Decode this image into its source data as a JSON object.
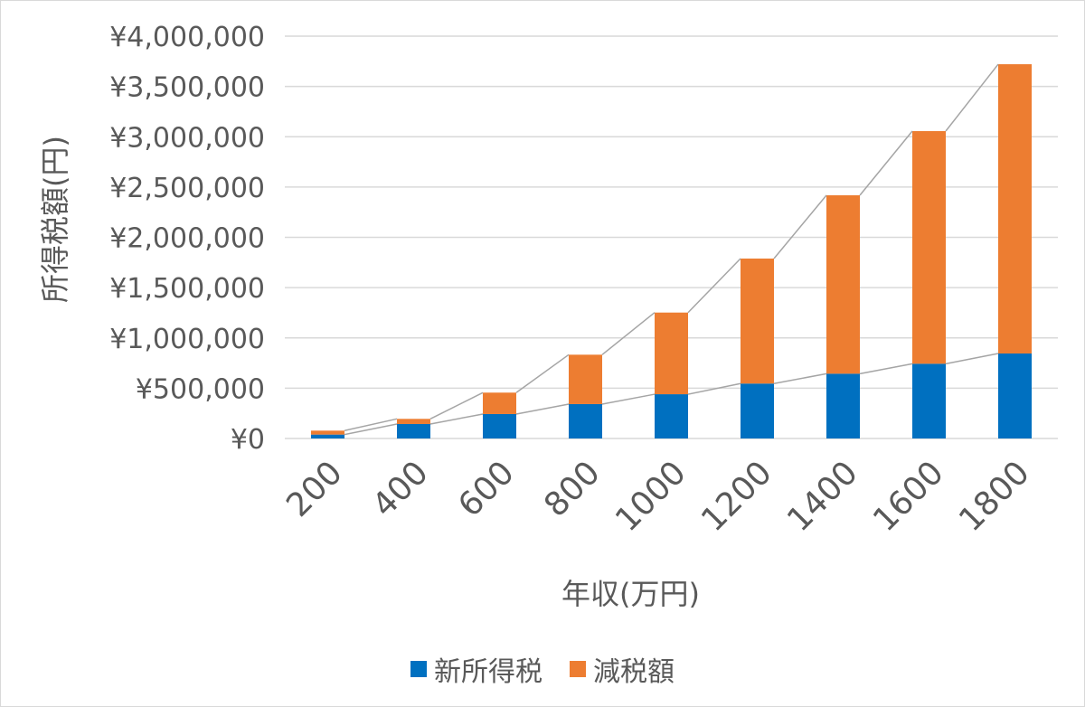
{
  "chart_data": {
    "type": "bar",
    "stacked": true,
    "xlabel": "年収(万円)",
    "ylabel": "所得税額(円)",
    "categories": [
      "200",
      "400",
      "600",
      "800",
      "1000",
      "1200",
      "1400",
      "1600",
      "1800"
    ],
    "series": [
      {
        "name": "新所得税",
        "color": "#0070c0",
        "values": [
          39000,
          144000,
          243000,
          342000,
          440000,
          546000,
          644000,
          743000,
          845000
        ]
      },
      {
        "name": "減税額",
        "color": "#ed7d31",
        "values": [
          39000,
          51000,
          213000,
          491000,
          812000,
          1243000,
          1774000,
          2313000,
          2876000
        ]
      }
    ],
    "series_lines": true,
    "ylim": [
      0,
      4000000
    ],
    "yticks": [
      0,
      500000,
      1000000,
      1500000,
      2000000,
      2500000,
      3000000,
      3500000,
      4000000
    ],
    "ytick_labels": [
      "¥0",
      "¥500,000",
      "¥1,000,000",
      "¥1,500,000",
      "¥2,000,000",
      "¥2,500,000",
      "¥3,000,000",
      "¥3,500,000",
      "¥4,000,000"
    ],
    "grid": true,
    "legend": "bottom"
  }
}
